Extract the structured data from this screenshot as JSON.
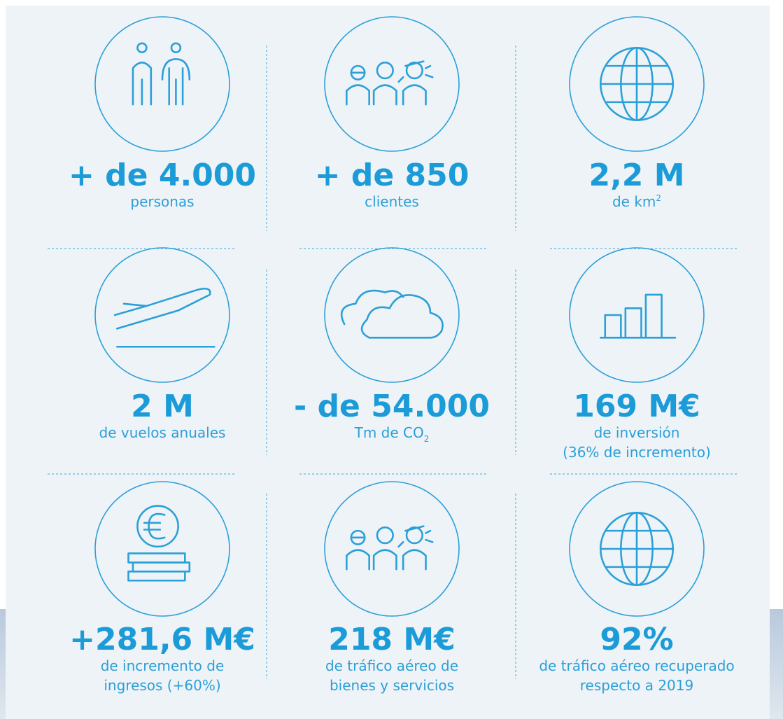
{
  "items": [
    {
      "value": "+ de 4.000",
      "lines": [
        "personas"
      ]
    },
    {
      "value": "+ de 850",
      "lines": [
        "clientes"
      ]
    },
    {
      "value": "2,2 M",
      "lines": [
        "de km"
      ],
      "sup": "2"
    },
    {
      "value": "2 M",
      "lines": [
        "de vuelos anuales"
      ]
    },
    {
      "value": "- de 54.000",
      "lines": [
        "Tm de CO"
      ],
      "sub": "2"
    },
    {
      "value": "169 M€",
      "lines": [
        "de inversión",
        "(36% de incremento)"
      ]
    },
    {
      "value": "+281,6 M€",
      "lines": [
        "de incremento de",
        "ingresos  (+60%)"
      ]
    },
    {
      "value": "218 M€",
      "lines": [
        "de tráfico aéreo de",
        "bienes y servicios"
      ]
    },
    {
      "value": "92%",
      "lines": [
        "de tráfico aéreo recuperado",
        "respecto a 2019"
      ]
    }
  ]
}
